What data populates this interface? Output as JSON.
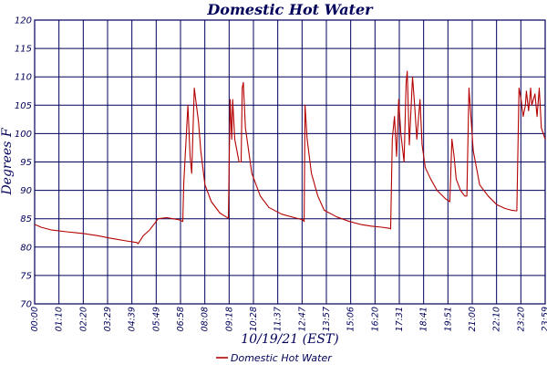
{
  "chart_data": {
    "type": "line",
    "title": "Domestic Hot Water",
    "xlabel": "10/19/21 (EST)",
    "ylabel": "Degrees F",
    "ylim": [
      70,
      120
    ],
    "yticks": [
      70,
      75,
      80,
      85,
      90,
      95,
      100,
      105,
      110,
      115,
      120
    ],
    "xlim_hours": [
      0,
      23.98
    ],
    "xtick_labels": [
      "00:00",
      "01:10",
      "02:20",
      "03:29",
      "04:39",
      "05:49",
      "06:58",
      "08:08",
      "09:18",
      "10:28",
      "11:37",
      "12:47",
      "13:57",
      "15:06",
      "16:20",
      "17:31",
      "18:41",
      "19:51",
      "21:00",
      "22:10",
      "23:20",
      "23:59"
    ],
    "grid": true,
    "legend_position": "bottom",
    "colors": {
      "line": "#b40000",
      "grid": "#00005a",
      "text": "#00005a",
      "background": "#ffffff"
    },
    "series": [
      {
        "name": "Domestic Hot Water",
        "x_hours": [
          0.0,
          0.3,
          0.8,
          1.5,
          2.3,
          3.0,
          3.5,
          4.3,
          4.8,
          4.86,
          5.1,
          5.4,
          5.6,
          5.8,
          6.2,
          6.8,
          6.96,
          7.0,
          7.2,
          7.3,
          7.38,
          7.5,
          7.7,
          7.8,
          8.0,
          8.3,
          8.7,
          9.0,
          9.1,
          9.18,
          9.26,
          9.3,
          9.4,
          9.6,
          9.7,
          9.75,
          9.8,
          9.9,
          10.2,
          10.6,
          11.0,
          11.6,
          12.2,
          12.6,
          12.66,
          12.7,
          12.8,
          13.0,
          13.3,
          13.6,
          14.2,
          14.8,
          15.3,
          15.8,
          16.3,
          16.7,
          16.72,
          16.8,
          16.9,
          17.0,
          17.1,
          17.2,
          17.35,
          17.45,
          17.5,
          17.6,
          17.75,
          17.85,
          17.95,
          18.1,
          18.2,
          18.35,
          18.6,
          18.9,
          19.3,
          19.5,
          19.6,
          19.7,
          19.8,
          20.0,
          20.2,
          20.3,
          20.4,
          20.6,
          20.9,
          21.3,
          21.7,
          22.1,
          22.4,
          22.6,
          22.65,
          22.75,
          22.85,
          22.95,
          23.05,
          23.1,
          23.2,
          23.3,
          23.35,
          23.5,
          23.6,
          23.7,
          23.8,
          23.98
        ],
        "values": [
          84.0,
          83.5,
          83.0,
          82.7,
          82.4,
          82.0,
          81.6,
          81.1,
          80.8,
          80.6,
          82.0,
          83.0,
          84.0,
          85.0,
          85.2,
          84.8,
          84.5,
          91.0,
          105.0,
          96.0,
          93.0,
          108.0,
          102.0,
          97.0,
          91.0,
          88.0,
          86.0,
          85.3,
          85.1,
          106.0,
          99.0,
          106.0,
          99.0,
          95.0,
          95.0,
          108.0,
          109.0,
          101.0,
          93.0,
          89.0,
          87.0,
          85.8,
          85.2,
          84.8,
          84.5,
          105.0,
          99.0,
          93.0,
          89.0,
          86.5,
          85.3,
          84.5,
          84.0,
          83.7,
          83.5,
          83.3,
          83.2,
          99.0,
          103.0,
          96.0,
          106.0,
          100.0,
          95.0,
          109.0,
          111.0,
          98.0,
          110.0,
          105.0,
          99.0,
          106.0,
          98.0,
          94.0,
          92.0,
          90.0,
          88.5,
          88.0,
          99.0,
          96.0,
          92.0,
          90.0,
          89.0,
          89.0,
          108.0,
          97.0,
          91.0,
          89.0,
          87.5,
          86.8,
          86.5,
          86.4,
          86.4,
          108.0,
          106.0,
          103.0,
          105.0,
          107.5,
          104.0,
          108.0,
          105.0,
          107.0,
          103.0,
          108.0,
          101.0,
          99.0
        ]
      }
    ]
  }
}
